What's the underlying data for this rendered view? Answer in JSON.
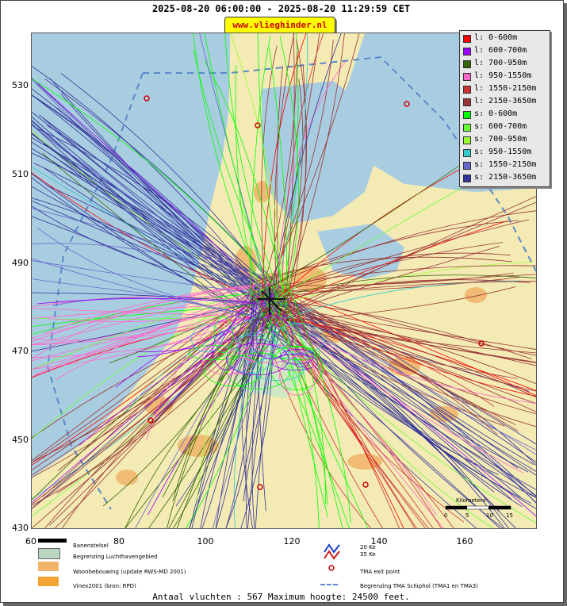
{
  "header": {
    "title": "2025-08-20 06:00:00 - 2025-08-20 11:29:59 CET",
    "brand": "www.vlieghinder.nl"
  },
  "axes": {
    "y_ticks": [
      "530",
      "510",
      "490",
      "470",
      "450",
      "430"
    ],
    "x_ticks": [
      "60",
      "80",
      "100",
      "120",
      "140",
      "160"
    ]
  },
  "legend": {
    "items": [
      {
        "label": "l: 0-600m",
        "color": "#ff0000"
      },
      {
        "label": "l: 600-700m",
        "color": "#9900ff"
      },
      {
        "label": "l: 700-950m",
        "color": "#336600"
      },
      {
        "label": "l: 950-1550m",
        "color": "#ff66cc"
      },
      {
        "label": "l: 1550-2150m",
        "color": "#cc3333"
      },
      {
        "label": "l: 2150-3650m",
        "color": "#993333"
      },
      {
        "label": "s: 0-600m",
        "color": "#00ff00"
      },
      {
        "label": "s: 600-700m",
        "color": "#66ff33"
      },
      {
        "label": "s: 700-950m",
        "color": "#99ff33"
      },
      {
        "label": "s: 950-1550m",
        "color": "#33cccc"
      },
      {
        "label": "s: 1550-2150m",
        "color": "#6666cc"
      },
      {
        "label": "s: 2150-3650m",
        "color": "#333399"
      }
    ]
  },
  "map_key": {
    "runways": "Banenstelsel",
    "airport_boundary": "Begrenzing Luchthavengebied",
    "housing": "Woonbebouwing (update RWS-MD 2001)",
    "vinex": "Vinex2001 (bron: RPD)",
    "wind_20": "20 Ke",
    "wind_35": "35 Ke",
    "tma_exit": "TMA exit point",
    "tma_boundary": "Begrenzing TMA Schiphol  (TMA1 en TMA3)",
    "scale_title": "Kilometers",
    "scale_ticks": [
      "0",
      "5",
      "10",
      "15"
    ]
  },
  "stats": "Antaal vluchten : 567 Maximum hoogte: 24500 feet."
}
